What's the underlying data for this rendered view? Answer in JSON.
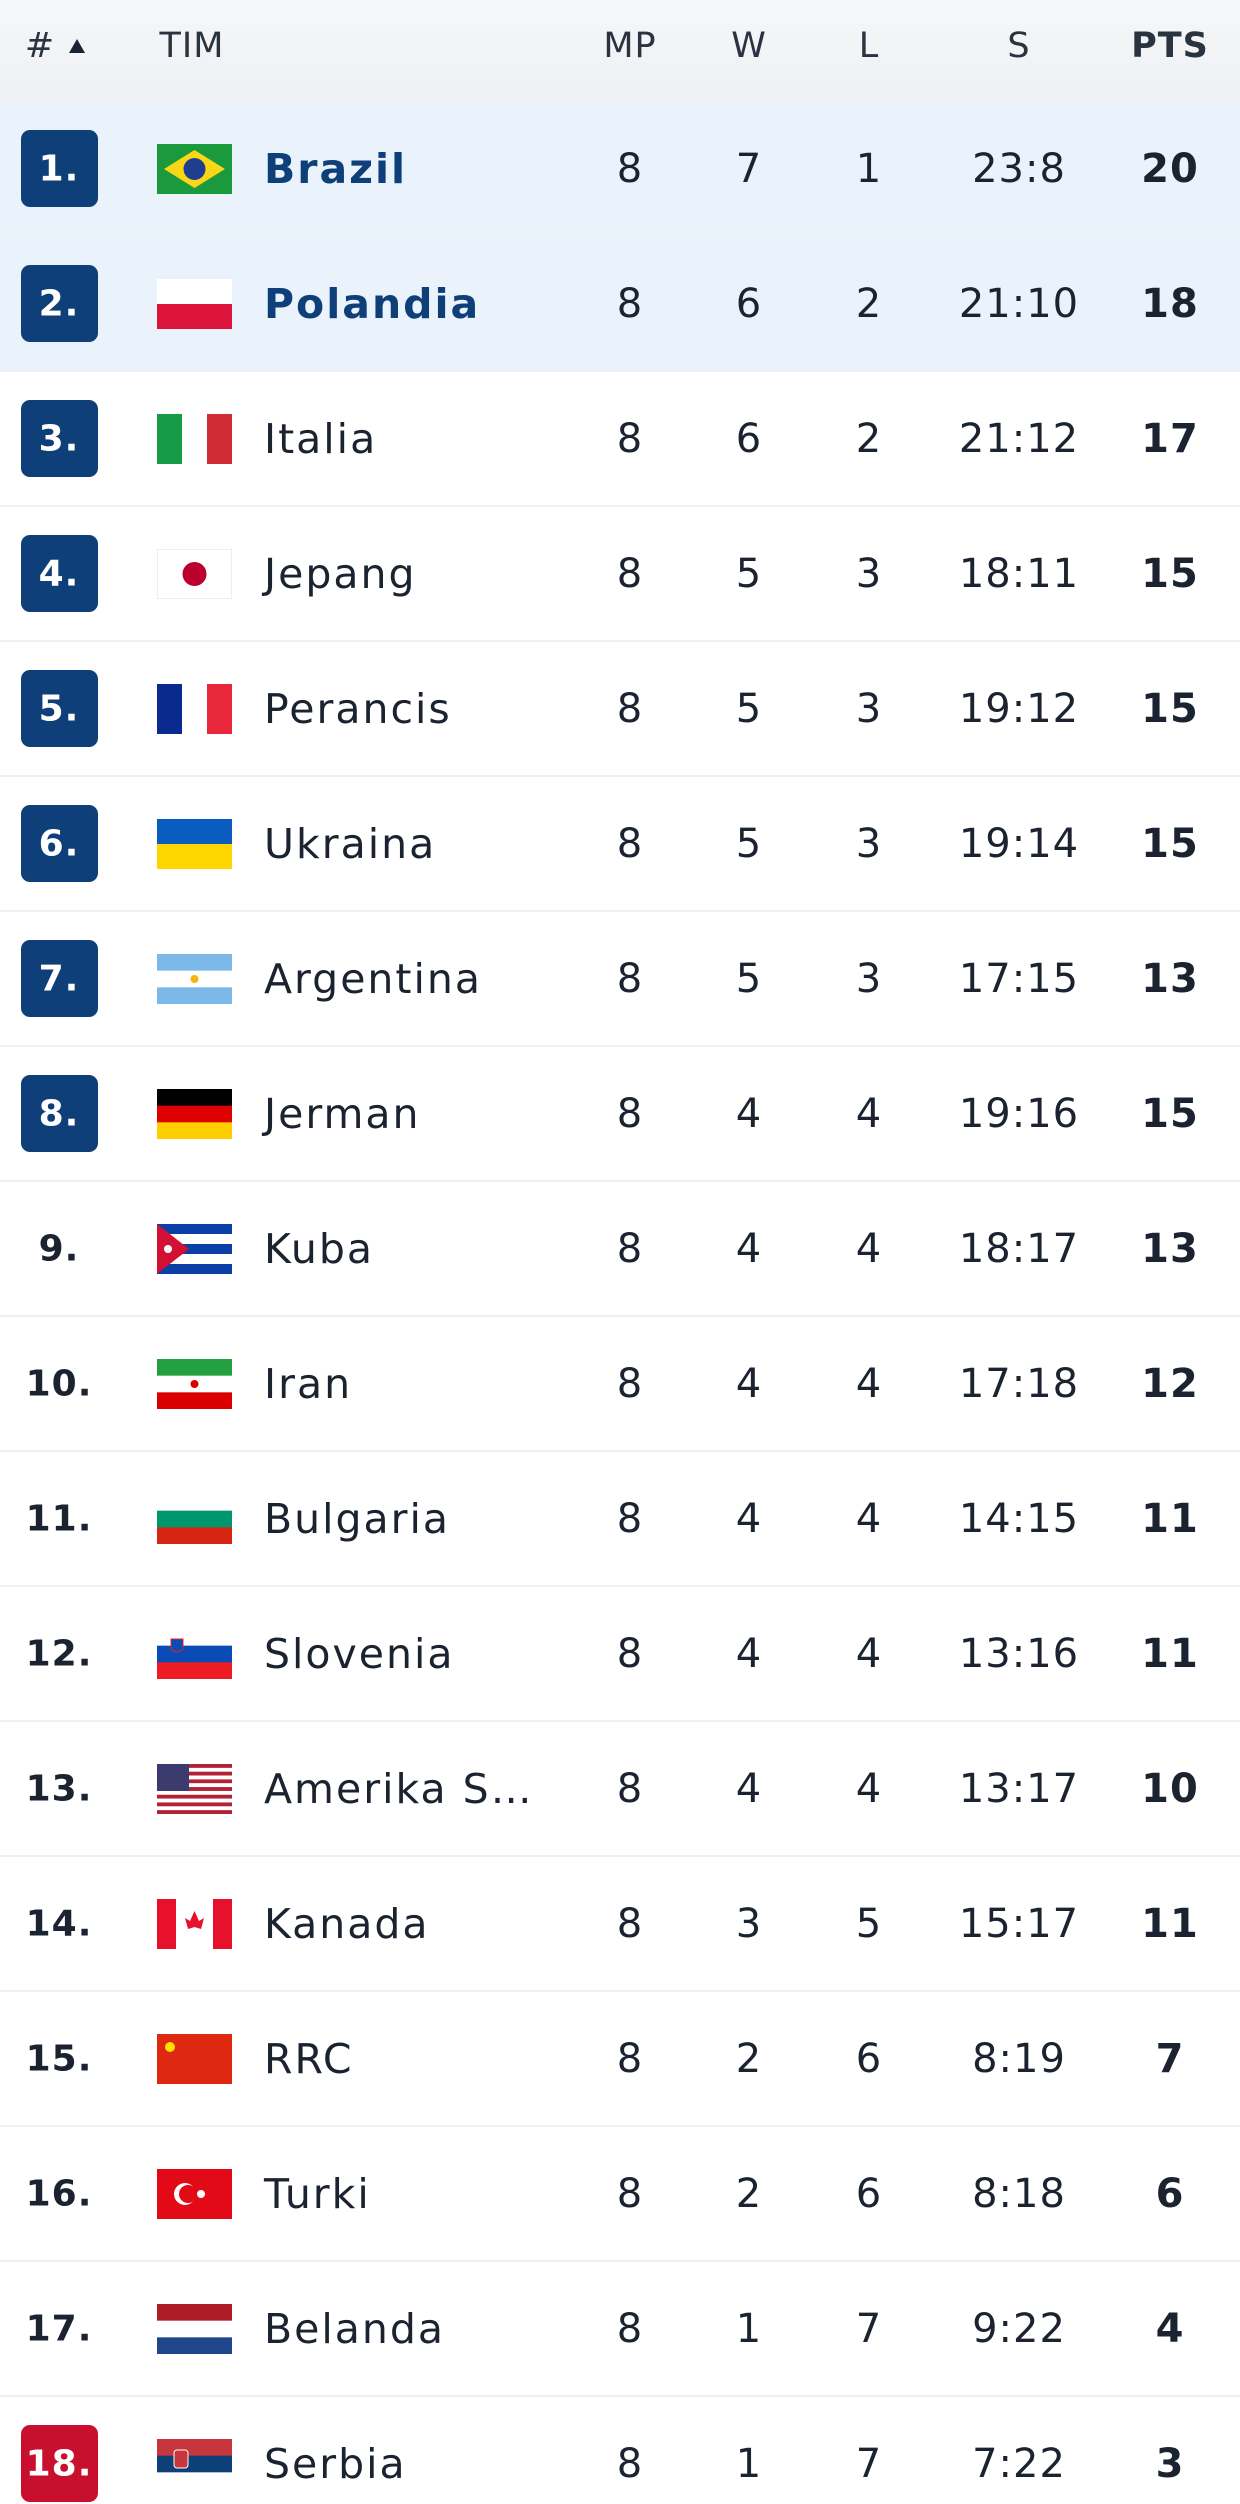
{
  "header": {
    "rank": "#",
    "team": "TIM",
    "mp": "MP",
    "w": "W",
    "l": "L",
    "s": "S",
    "pts": "PTS"
  },
  "rows": [
    {
      "rank": "1.",
      "team": "Brazil",
      "mp": "8",
      "w": "7",
      "l": "1",
      "s": "23:8",
      "pts": "20"
    },
    {
      "rank": "2.",
      "team": "Polandia",
      "mp": "8",
      "w": "6",
      "l": "2",
      "s": "21:10",
      "pts": "18"
    },
    {
      "rank": "3.",
      "team": "Italia",
      "mp": "8",
      "w": "6",
      "l": "2",
      "s": "21:12",
      "pts": "17"
    },
    {
      "rank": "4.",
      "team": "Jepang",
      "mp": "8",
      "w": "5",
      "l": "3",
      "s": "18:11",
      "pts": "15"
    },
    {
      "rank": "5.",
      "team": "Perancis",
      "mp": "8",
      "w": "5",
      "l": "3",
      "s": "19:12",
      "pts": "15"
    },
    {
      "rank": "6.",
      "team": "Ukraina",
      "mp": "8",
      "w": "5",
      "l": "3",
      "s": "19:14",
      "pts": "15"
    },
    {
      "rank": "7.",
      "team": "Argentina",
      "mp": "8",
      "w": "5",
      "l": "3",
      "s": "17:15",
      "pts": "13"
    },
    {
      "rank": "8.",
      "team": "Jerman",
      "mp": "8",
      "w": "4",
      "l": "4",
      "s": "19:16",
      "pts": "15"
    },
    {
      "rank": "9.",
      "team": "Kuba",
      "mp": "8",
      "w": "4",
      "l": "4",
      "s": "18:17",
      "pts": "13"
    },
    {
      "rank": "10.",
      "team": "Iran",
      "mp": "8",
      "w": "4",
      "l": "4",
      "s": "17:18",
      "pts": "12"
    },
    {
      "rank": "11.",
      "team": "Bulgaria",
      "mp": "8",
      "w": "4",
      "l": "4",
      "s": "14:15",
      "pts": "11"
    },
    {
      "rank": "12.",
      "team": "Slovenia",
      "mp": "8",
      "w": "4",
      "l": "4",
      "s": "13:16",
      "pts": "11"
    },
    {
      "rank": "13.",
      "team": "Amerika S…",
      "mp": "8",
      "w": "4",
      "l": "4",
      "s": "13:17",
      "pts": "10"
    },
    {
      "rank": "14.",
      "team": "Kanada",
      "mp": "8",
      "w": "3",
      "l": "5",
      "s": "15:17",
      "pts": "11"
    },
    {
      "rank": "15.",
      "team": "RRC",
      "mp": "8",
      "w": "2",
      "l": "6",
      "s": "8:19",
      "pts": "7"
    },
    {
      "rank": "16.",
      "team": "Turki",
      "mp": "8",
      "w": "2",
      "l": "6",
      "s": "8:18",
      "pts": "6"
    },
    {
      "rank": "17.",
      "team": "Belanda",
      "mp": "8",
      "w": "1",
      "l": "7",
      "s": "9:22",
      "pts": "4"
    },
    {
      "rank": "18.",
      "team": "Serbia",
      "mp": "8",
      "w": "1",
      "l": "7",
      "s": "7:22",
      "pts": "3"
    }
  ]
}
